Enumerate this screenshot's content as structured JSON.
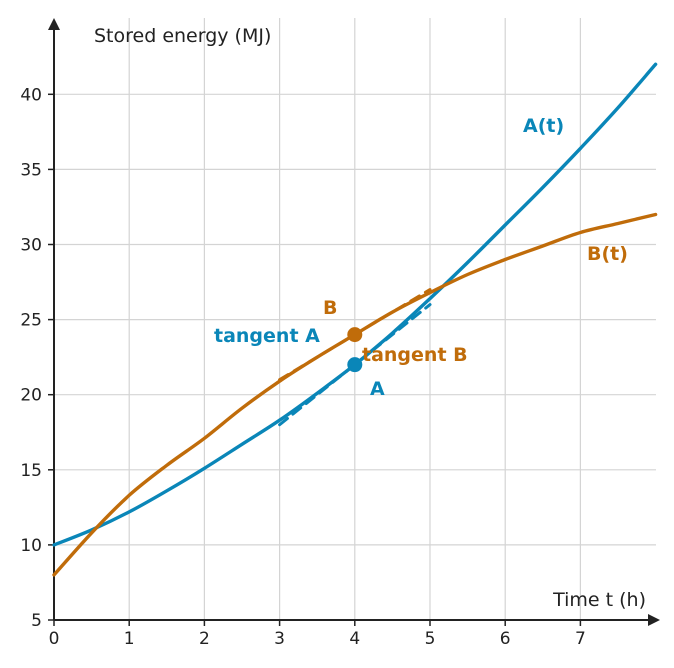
{
  "chart_data": {
    "type": "line",
    "xlabel": "Time t (h)",
    "ylabel": "Stored energy (MJ)",
    "xlim": [
      0,
      8
    ],
    "ylim": [
      5,
      44
    ],
    "x_ticks": [
      0,
      1,
      2,
      3,
      4,
      5,
      6,
      7
    ],
    "y_ticks": [
      5,
      10,
      15,
      20,
      25,
      30,
      35,
      40
    ],
    "grid": true,
    "colors": {
      "A": "#0a86b8",
      "B": "#c06c0a",
      "grid": "#d4d4d4",
      "axis": "#222222"
    },
    "series": [
      {
        "name": "A(t)",
        "color": "#0a86b8",
        "x": [
          0,
          0.5,
          1,
          1.5,
          2,
          2.5,
          3,
          3.5,
          4,
          4.5,
          5,
          5.5,
          6,
          6.5,
          7,
          7.5,
          8
        ],
        "y": [
          10,
          11,
          12.2,
          13.6,
          15.1,
          16.7,
          18.3,
          20.1,
          22,
          24.1,
          26.4,
          28.8,
          31.3,
          33.8,
          36.4,
          39.1,
          42
        ]
      },
      {
        "name": "B(t)",
        "color": "#c06c0a",
        "x": [
          0,
          0.5,
          1,
          1.5,
          2,
          2.5,
          3,
          3.5,
          4,
          4.5,
          5,
          5.5,
          6,
          6.5,
          7,
          7.5,
          8
        ],
        "y": [
          8,
          10.8,
          13.3,
          15.3,
          17.1,
          19.1,
          20.9,
          22.5,
          24,
          25.5,
          26.8,
          28,
          29,
          29.9,
          30.8,
          31.4,
          32
        ]
      }
    ],
    "points": [
      {
        "label": "A",
        "x": 4,
        "y": 22,
        "series": "A(t)"
      },
      {
        "label": "B",
        "x": 4,
        "y": 24,
        "series": "B(t)"
      }
    ],
    "tangents": [
      {
        "label": "tangent A",
        "series": "A(t)",
        "x0": 4,
        "y0": 22,
        "slope": 4,
        "x_from": 3,
        "x_to": 5
      },
      {
        "label": "tangent B",
        "series": "B(t)",
        "x0": 4,
        "y0": 24,
        "slope": 3,
        "x_from": 3,
        "x_to": 5
      }
    ]
  }
}
